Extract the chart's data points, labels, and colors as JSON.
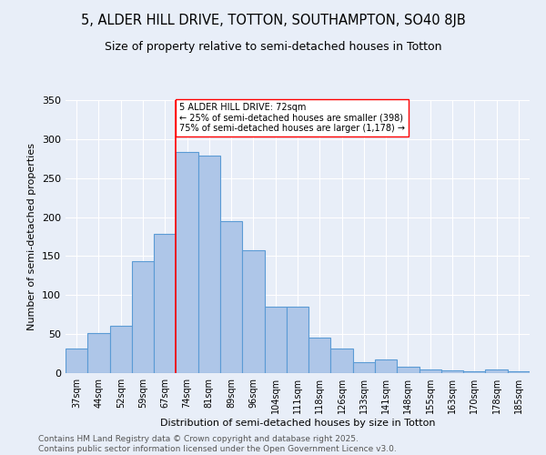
{
  "title": "5, ALDER HILL DRIVE, TOTTON, SOUTHAMPTON, SO40 8JB",
  "subtitle": "Size of property relative to semi-detached houses in Totton",
  "xlabel": "Distribution of semi-detached houses by size in Totton",
  "ylabel": "Number of semi-detached properties",
  "categories": [
    "37sqm",
    "44sqm",
    "52sqm",
    "59sqm",
    "67sqm",
    "74sqm",
    "81sqm",
    "89sqm",
    "96sqm",
    "104sqm",
    "111sqm",
    "118sqm",
    "126sqm",
    "133sqm",
    "141sqm",
    "148sqm",
    "155sqm",
    "163sqm",
    "170sqm",
    "178sqm",
    "185sqm"
  ],
  "values": [
    32,
    51,
    61,
    144,
    179,
    283,
    279,
    195,
    157,
    85,
    85,
    46,
    31,
    14,
    17,
    8,
    5,
    4,
    2,
    5,
    2
  ],
  "bar_color": "#aec6e8",
  "bar_edge_color": "#5b9bd5",
  "bg_color": "#e8eef8",
  "grid_color": "#ffffff",
  "vline_color": "red",
  "annotation_text": "5 ALDER HILL DRIVE: 72sqm\n← 25% of semi-detached houses are smaller (398)\n75% of semi-detached houses are larger (1,178) →",
  "annotation_box_color": "white",
  "annotation_box_edge_color": "red",
  "footer_text": "Contains HM Land Registry data © Crown copyright and database right 2025.\nContains public sector information licensed under the Open Government Licence v3.0.",
  "ylim": [
    0,
    350
  ],
  "yticks": [
    0,
    50,
    100,
    150,
    200,
    250,
    300,
    350
  ],
  "title_fontsize": 10.5,
  "subtitle_fontsize": 9,
  "axis_label_fontsize": 8,
  "tick_fontsize": 7,
  "annotation_fontsize": 7,
  "footer_fontsize": 6.5
}
